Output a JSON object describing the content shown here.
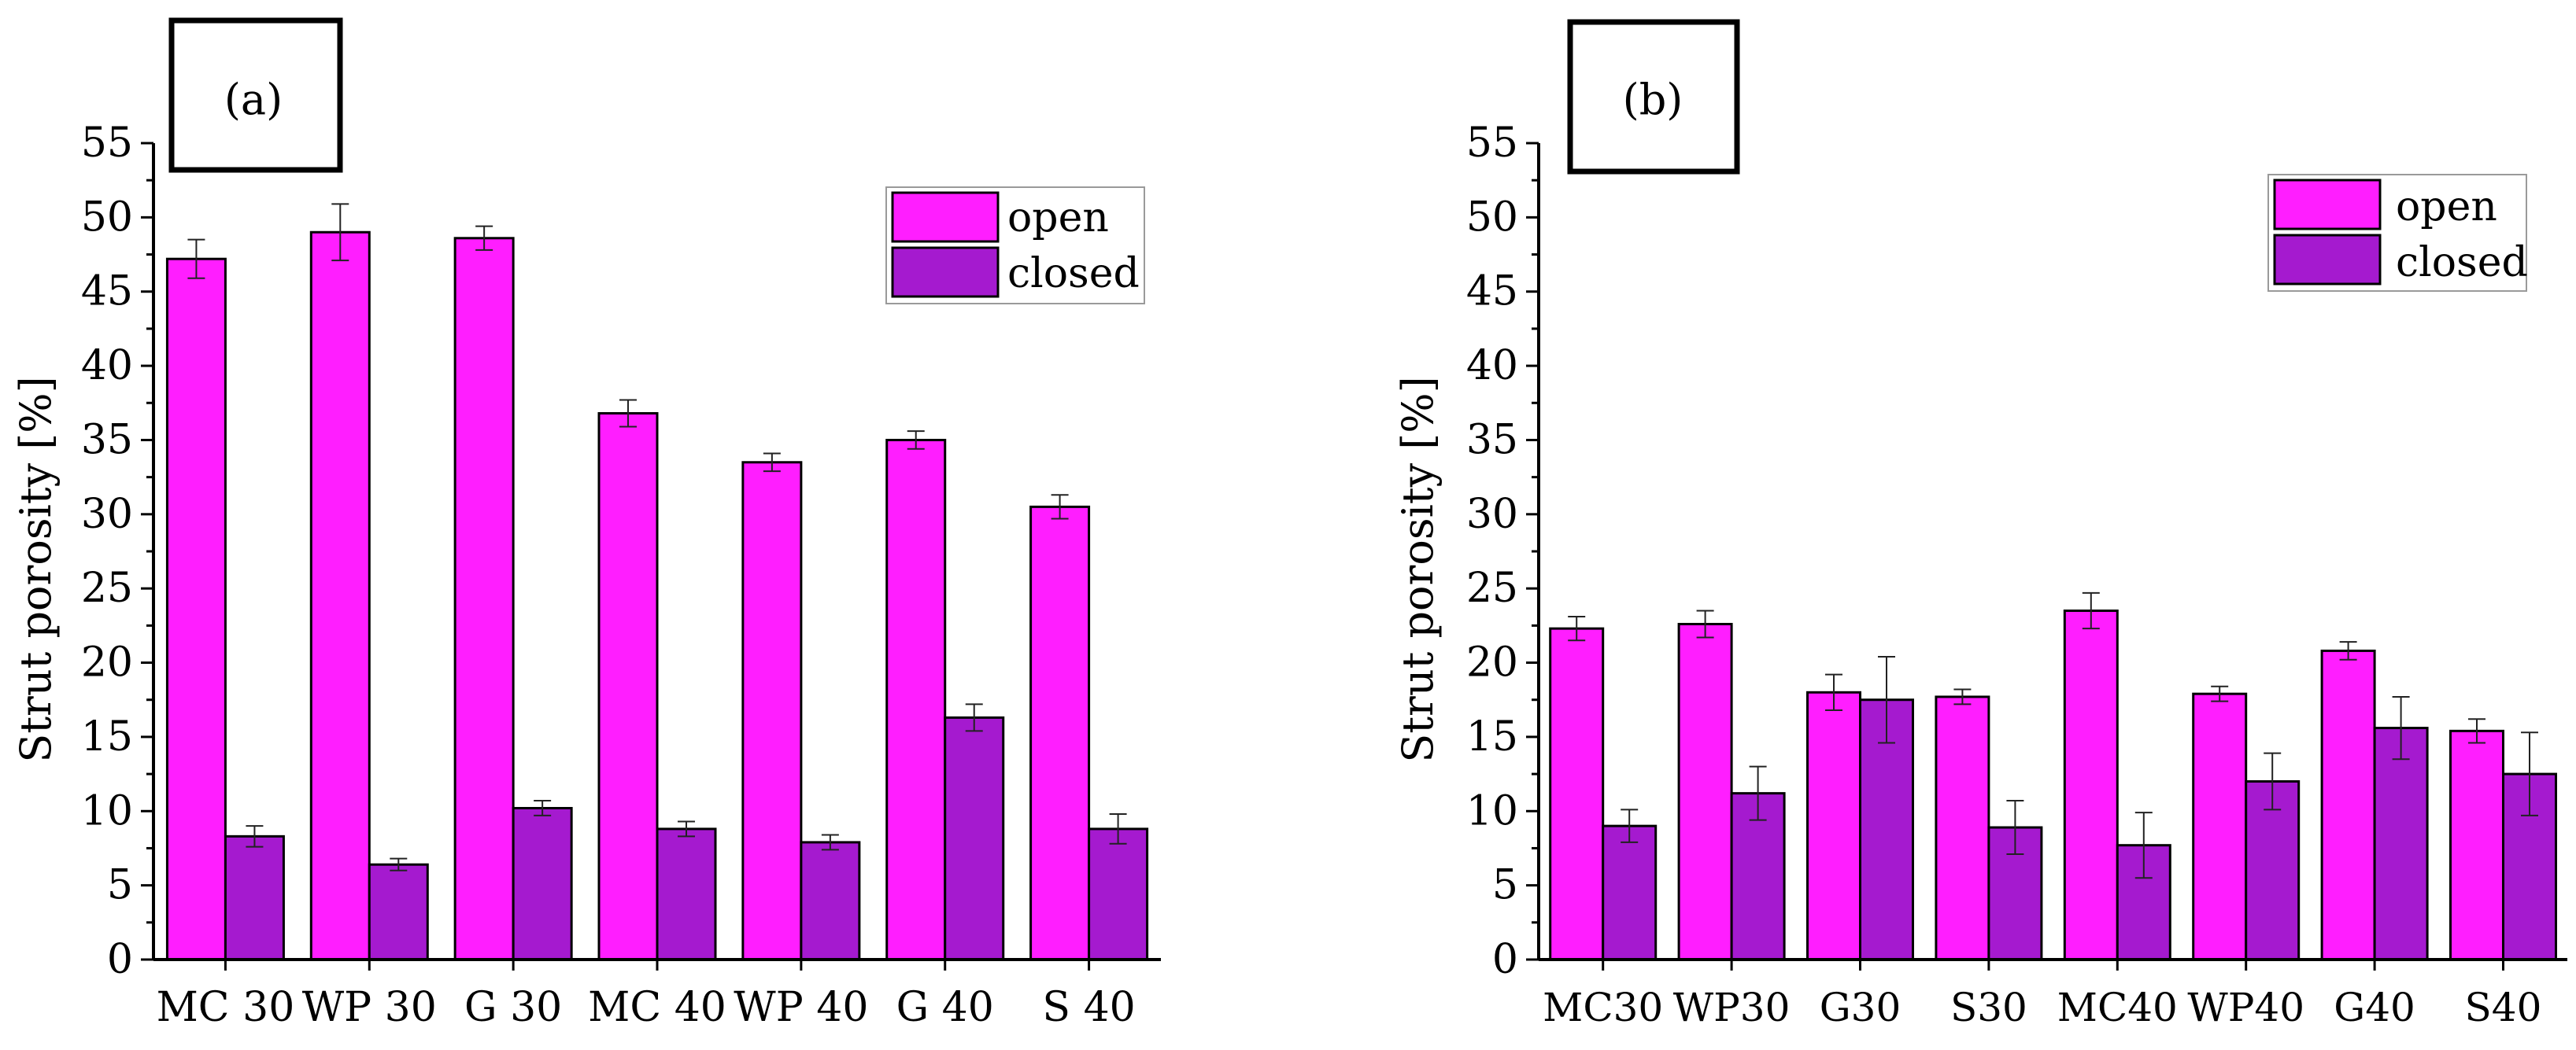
{
  "colors": {
    "open": "#ff1eff",
    "closed": "#a51acf",
    "axis": "#000000",
    "background": "#ffffff"
  },
  "chart_data": [
    {
      "panel_label": "(a)",
      "type": "bar",
      "ylabel": "Strut porosity [%]",
      "xlabel": "",
      "ylim": [
        0,
        55
      ],
      "yticks": [
        "0",
        "5",
        "10",
        "15",
        "20",
        "25",
        "30",
        "35",
        "40",
        "45",
        "50",
        "55"
      ],
      "categories": [
        "MC 30",
        "WP 30",
        "G 30",
        "MC 40",
        "WP 40",
        "G 40",
        "S 40"
      ],
      "legend_position": "top-right",
      "series": [
        {
          "name": "open",
          "values": [
            47.2,
            49.0,
            48.6,
            36.8,
            33.5,
            35.0,
            30.5
          ],
          "errors": [
            1.3,
            1.9,
            0.8,
            0.9,
            0.6,
            0.6,
            0.8
          ]
        },
        {
          "name": "closed",
          "values": [
            8.3,
            6.4,
            10.2,
            8.8,
            7.9,
            16.3,
            8.8
          ],
          "errors": [
            0.7,
            0.4,
            0.5,
            0.5,
            0.5,
            0.9,
            1.0
          ]
        }
      ]
    },
    {
      "panel_label": "(b)",
      "type": "bar",
      "ylabel": "Strut porosity [%]",
      "xlabel": "",
      "ylim": [
        0,
        55
      ],
      "yticks": [
        "0",
        "5",
        "10",
        "15",
        "20",
        "25",
        "30",
        "35",
        "40",
        "45",
        "50",
        "55"
      ],
      "categories": [
        "MC30",
        "WP30",
        "G30",
        "S30",
        "MC40",
        "WP40",
        "G40",
        "S40"
      ],
      "legend_position": "top-right",
      "series": [
        {
          "name": "open",
          "values": [
            22.3,
            22.6,
            18.0,
            17.7,
            23.5,
            17.9,
            20.8,
            15.4
          ],
          "errors": [
            0.8,
            0.9,
            1.2,
            0.5,
            1.2,
            0.5,
            0.6,
            0.8
          ]
        },
        {
          "name": "closed",
          "values": [
            9.0,
            11.2,
            17.5,
            8.9,
            7.7,
            12.0,
            15.6,
            12.5
          ],
          "errors": [
            1.1,
            1.8,
            2.9,
            1.8,
            2.2,
            1.9,
            2.1,
            2.8
          ]
        }
      ]
    }
  ]
}
